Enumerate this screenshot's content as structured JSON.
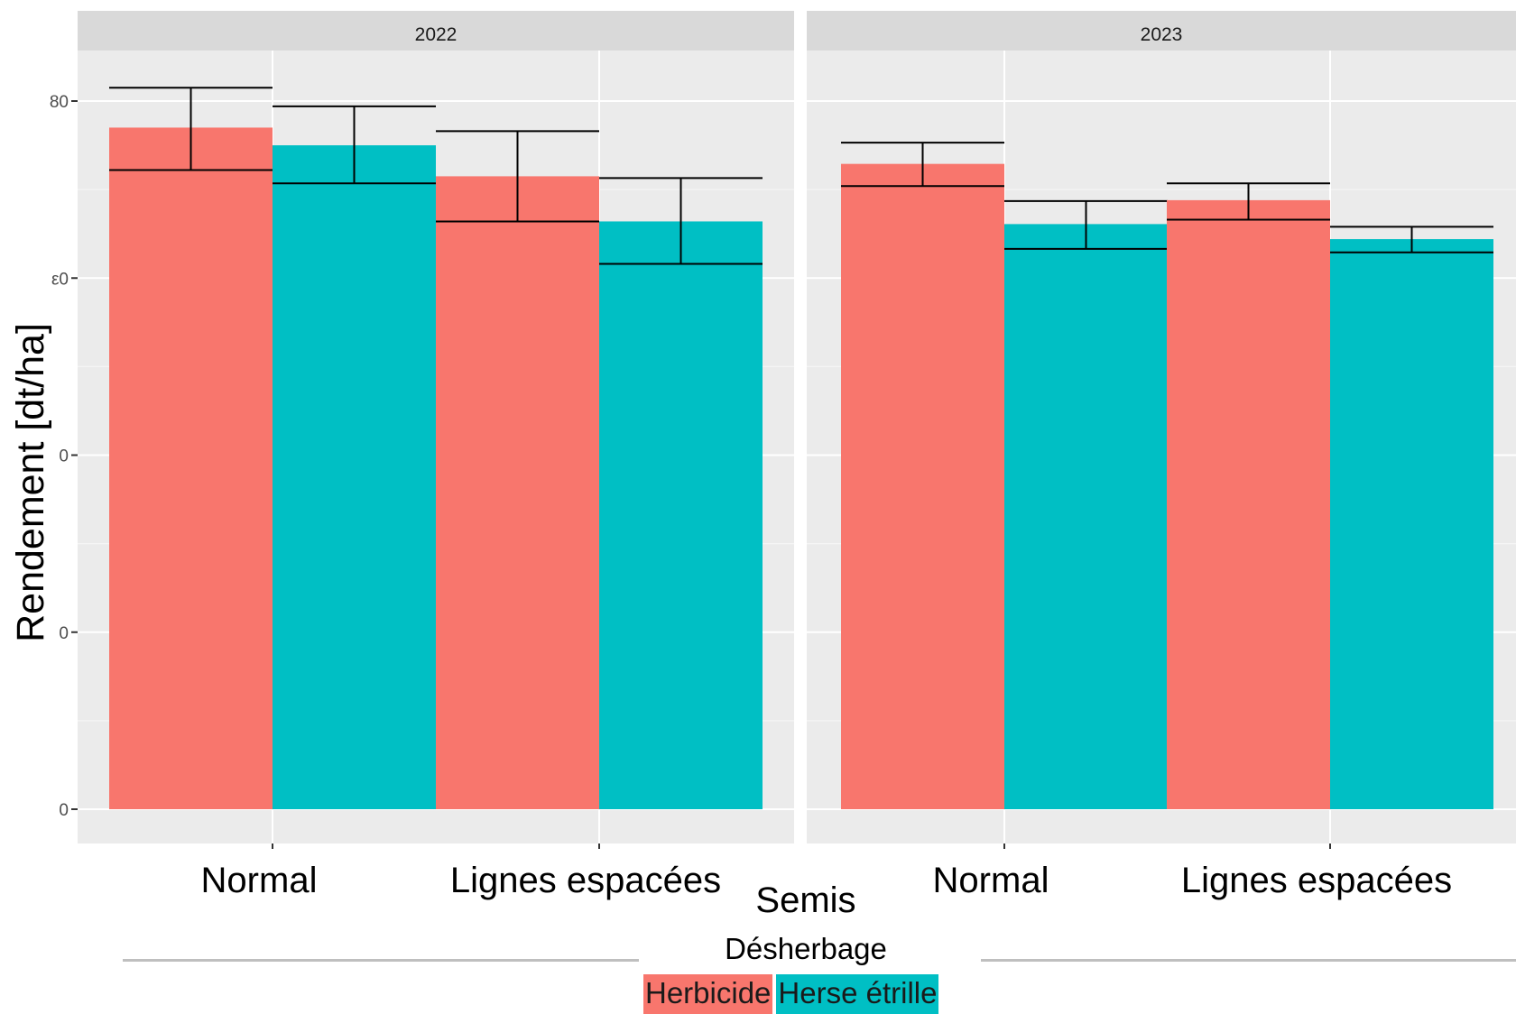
{
  "chart_data": {
    "type": "bar",
    "ylabel": "Rendement [dt/ha]",
    "xlabel": "Semis",
    "y_tick_labels": [
      "0",
      "0",
      "0",
      "ε0",
      "80"
    ],
    "ylim": [
      0,
      88
    ],
    "grid": true,
    "legend": {
      "title": "Désherbage",
      "position": "bottom",
      "entries": [
        {
          "name": "Herbicide",
          "color": "#F8766D"
        },
        {
          "name": "Herse étrille",
          "color": "#00BFC4"
        }
      ]
    },
    "facets": [
      {
        "label": "2022",
        "categories": [
          "Normal",
          "Lignes espacées"
        ],
        "series": [
          {
            "name": "Herbicide",
            "values": [
              77,
              71.5
            ],
            "err_low": [
              72.2,
              66.4
            ],
            "err_high": [
              81.5,
              76.6
            ]
          },
          {
            "name": "Herse étrille",
            "values": [
              75,
              66.4
            ],
            "err_low": [
              70.7,
              61.6
            ],
            "err_high": [
              79.4,
              71.3
            ]
          }
        ]
      },
      {
        "label": "2023",
        "categories": [
          "Normal",
          "Lignes espacées"
        ],
        "series": [
          {
            "name": "Herbicide",
            "values": [
              72.9,
              68.8
            ],
            "err_low": [
              70.4,
              66.6
            ],
            "err_high": [
              75.3,
              70.7
            ]
          },
          {
            "name": "Herse étrille",
            "values": [
              66.1,
              64.4
            ],
            "err_low": [
              63.3,
              62.9
            ],
            "err_high": [
              68.7,
              65.8
            ]
          }
        ]
      }
    ]
  }
}
